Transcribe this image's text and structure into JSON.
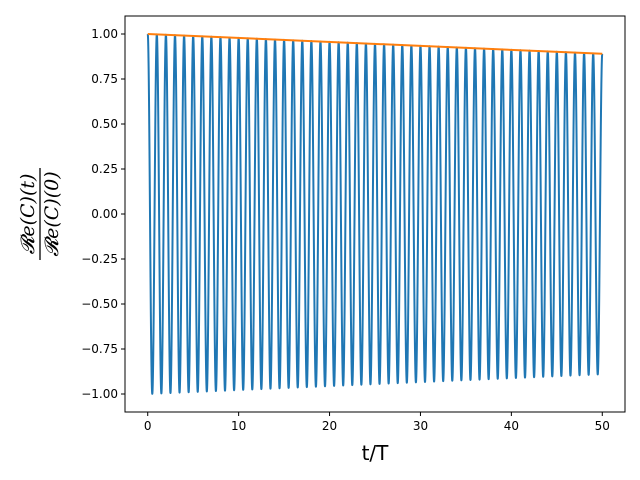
{
  "chart_data": {
    "type": "line",
    "title": "",
    "xlabel": "t/T",
    "ylabel": {
      "numerator": "𝓡e(C)(t)",
      "denominator": "𝓡e(C)(0)"
    },
    "xlim": [
      -2.5,
      52.5
    ],
    "ylim": [
      -1.1,
      1.1
    ],
    "x_ticks": [
      0,
      10,
      20,
      30,
      40,
      50
    ],
    "x_tick_labels": [
      "0",
      "10",
      "20",
      "30",
      "40",
      "50"
    ],
    "y_ticks": [
      -1.0,
      -0.75,
      -0.5,
      -0.25,
      0.0,
      0.25,
      0.5,
      0.75,
      1.0
    ],
    "y_tick_labels": [
      "−1.00",
      "−0.75",
      "−0.50",
      "−0.25",
      "0.00",
      "0.25",
      "0.50",
      "0.75",
      "1.00"
    ],
    "grid": false,
    "legend": "none",
    "series": [
      {
        "color": "#1f77b4",
        "kind": "oscillation",
        "x_start": 0,
        "x_end": 50,
        "period": 1.0,
        "amplitude_start": 1.0,
        "amplitude_end": 0.89
      },
      {
        "color": "#ff7f0e",
        "kind": "envelope",
        "x": [
          0,
          50
        ],
        "y": [
          1.0,
          0.89
        ]
      }
    ]
  }
}
